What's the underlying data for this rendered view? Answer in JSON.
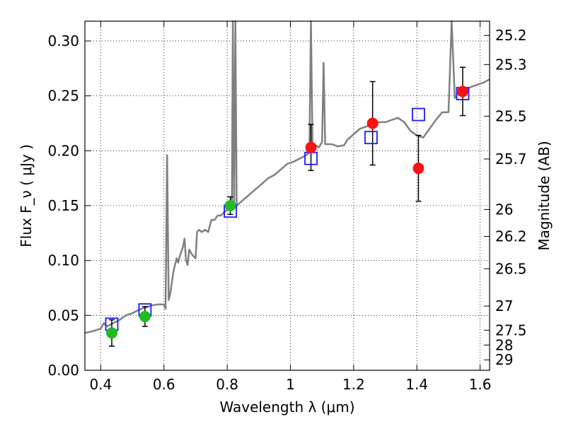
{
  "chart_data": {
    "type": "scatter",
    "xlabel": "Wavelength  λ (μm)",
    "ylabel": "Flux  F_ν  ( μJy )",
    "ylabel_right": "Magnitude (AB)",
    "xlim": [
      0.35,
      1.63
    ],
    "ylim": [
      0.0,
      0.318
    ],
    "grid": true,
    "x_ticks": [
      0.4,
      0.6,
      0.8,
      1.0,
      1.2,
      1.4,
      1.6
    ],
    "x_tick_labels": [
      "0.4",
      "0.6",
      "0.8",
      "1",
      "1.2",
      "1.4",
      "1.6"
    ],
    "y_ticks": [
      0.0,
      0.05,
      0.1,
      0.15,
      0.2,
      0.25,
      0.3
    ],
    "y_tick_labels": [
      "0.00",
      "0.05",
      "0.10",
      "0.15",
      "0.20",
      "0.25",
      "0.30"
    ],
    "mag_ticks": [
      {
        "label": "25.2",
        "flux": 0.305
      },
      {
        "label": "25.3",
        "flux": 0.2785
      },
      {
        "label": "25.5",
        "flux": 0.2315
      },
      {
        "label": "25.7",
        "flux": 0.1925
      },
      {
        "label": "26",
        "flux": 0.1465
      },
      {
        "label": "26.2",
        "flux": 0.122
      },
      {
        "label": "26.5",
        "flux": 0.0925
      },
      {
        "label": "27",
        "flux": 0.0585
      },
      {
        "label": "27.5",
        "flux": 0.0365
      },
      {
        "label": "28",
        "flux": 0.023
      },
      {
        "label": "29",
        "flux": 0.0095
      }
    ],
    "model_spectrum": {
      "color": "#808080",
      "points": [
        [
          0.35,
          0.034
        ],
        [
          0.38,
          0.036
        ],
        [
          0.4,
          0.038
        ],
        [
          0.41,
          0.043
        ],
        [
          0.42,
          0.04
        ],
        [
          0.44,
          0.043
        ],
        [
          0.46,
          0.046
        ],
        [
          0.48,
          0.05
        ],
        [
          0.5,
          0.052
        ],
        [
          0.52,
          0.055
        ],
        [
          0.54,
          0.057
        ],
        [
          0.56,
          0.059
        ],
        [
          0.58,
          0.06
        ],
        [
          0.6,
          0.06
        ],
        [
          0.605,
          0.056
        ],
        [
          0.61,
          0.196
        ],
        [
          0.615,
          0.064
        ],
        [
          0.62,
          0.07
        ],
        [
          0.625,
          0.08
        ],
        [
          0.63,
          0.09
        ],
        [
          0.635,
          0.096
        ],
        [
          0.64,
          0.102
        ],
        [
          0.645,
          0.098
        ],
        [
          0.65,
          0.104
        ],
        [
          0.66,
          0.112
        ],
        [
          0.665,
          0.12
        ],
        [
          0.67,
          0.1
        ],
        [
          0.675,
          0.096
        ],
        [
          0.68,
          0.11
        ],
        [
          0.69,
          0.105
        ],
        [
          0.7,
          0.102
        ],
        [
          0.705,
          0.126
        ],
        [
          0.71,
          0.128
        ],
        [
          0.72,
          0.126
        ],
        [
          0.73,
          0.128
        ],
        [
          0.74,
          0.126
        ],
        [
          0.75,
          0.137
        ],
        [
          0.76,
          0.137
        ],
        [
          0.77,
          0.141
        ],
        [
          0.78,
          0.141
        ],
        [
          0.79,
          0.144
        ],
        [
          0.8,
          0.146
        ],
        [
          0.81,
          0.148
        ],
        [
          0.815,
          0.15
        ],
        [
          0.818,
          0.318
        ],
        [
          0.822,
          0.151
        ],
        [
          0.826,
          0.318
        ],
        [
          0.83,
          0.15
        ],
        [
          0.85,
          0.155
        ],
        [
          0.87,
          0.16
        ],
        [
          0.89,
          0.165
        ],
        [
          0.91,
          0.17
        ],
        [
          0.93,
          0.175
        ],
        [
          0.95,
          0.178
        ],
        [
          0.97,
          0.183
        ],
        [
          0.99,
          0.188
        ],
        [
          1.01,
          0.19
        ],
        [
          1.03,
          0.193
        ],
        [
          1.05,
          0.196
        ],
        [
          1.06,
          0.198
        ],
        [
          1.065,
          0.318
        ],
        [
          1.07,
          0.2
        ],
        [
          1.08,
          0.205
        ],
        [
          1.09,
          0.203
        ],
        [
          1.1,
          0.208
        ],
        [
          1.105,
          0.28
        ],
        [
          1.11,
          0.206
        ],
        [
          1.13,
          0.206
        ],
        [
          1.15,
          0.204
        ],
        [
          1.17,
          0.205
        ],
        [
          1.18,
          0.21
        ],
        [
          1.2,
          0.215
        ],
        [
          1.22,
          0.22
        ],
        [
          1.24,
          0.222
        ],
        [
          1.26,
          0.225
        ],
        [
          1.28,
          0.226
        ],
        [
          1.3,
          0.226
        ],
        [
          1.32,
          0.228
        ],
        [
          1.34,
          0.23
        ],
        [
          1.36,
          0.226
        ],
        [
          1.38,
          0.218
        ],
        [
          1.4,
          0.214
        ],
        [
          1.42,
          0.212
        ],
        [
          1.44,
          0.22
        ],
        [
          1.46,
          0.228
        ],
        [
          1.48,
          0.235
        ],
        [
          1.5,
          0.235
        ],
        [
          1.51,
          0.318
        ],
        [
          1.52,
          0.248
        ],
        [
          1.53,
          0.252
        ],
        [
          1.55,
          0.255
        ],
        [
          1.57,
          0.258
        ],
        [
          1.59,
          0.26
        ],
        [
          1.61,
          0.262
        ],
        [
          1.63,
          0.265
        ]
      ]
    },
    "model_photometry": {
      "color": "#1a1aff",
      "points": [
        [
          0.435,
          0.042
        ],
        [
          0.54,
          0.055
        ],
        [
          0.81,
          0.145
        ],
        [
          1.065,
          0.193
        ],
        [
          1.255,
          0.212
        ],
        [
          1.405,
          0.233
        ],
        [
          1.545,
          0.252
        ]
      ]
    },
    "observed_optical": {
      "color": "#22bb22",
      "points": [
        {
          "x": 0.435,
          "y": 0.034,
          "err": 0.012
        },
        {
          "x": 0.54,
          "y": 0.049,
          "err": 0.009
        },
        {
          "x": 0.81,
          "y": 0.15,
          "err": 0.008
        }
      ]
    },
    "observed_nir": {
      "color": "#ff1111",
      "points": [
        {
          "x": 1.065,
          "y": 0.203,
          "err": 0.021
        },
        {
          "x": 1.26,
          "y": 0.225,
          "err": 0.038
        },
        {
          "x": 1.405,
          "y": 0.184,
          "err": 0.03
        },
        {
          "x": 1.545,
          "y": 0.254,
          "err": 0.022
        }
      ]
    }
  }
}
